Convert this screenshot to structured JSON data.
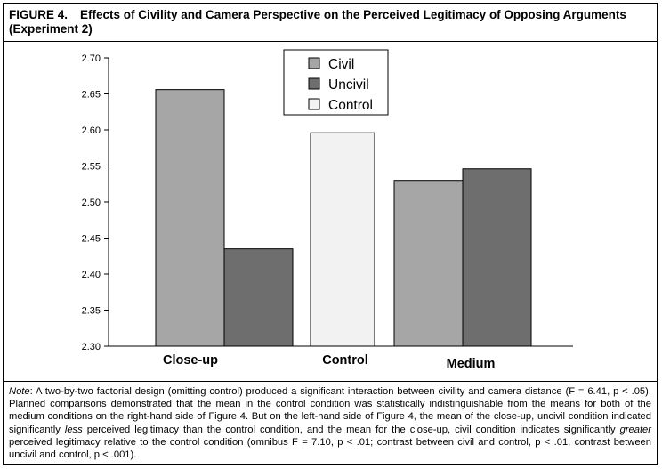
{
  "figure": {
    "number": "FIGURE 4.",
    "title": "Effects of Civility and Camera Perspective on the Perceived Legitimacy of Opposing Arguments (Experiment 2)"
  },
  "note": {
    "label": "Note",
    "segments": [
      ": A two-by-two factorial design (omitting control) produced a significant interaction between civility and camera distance (F = 6.41, p < .05). Planned comparisons demonstrated that the mean in the control condition was statistically indistinguishable from the means for both of the medium conditions on the right-hand side of Figure 4. But on the left-hand side of Figure 4, the mean of the close-up, uncivil condition indicated significantly ",
      "less",
      " perceived legitimacy than the control condition, and the mean for the close-up, civil condition indicates significantly ",
      "greater",
      " perceived legitimacy relative to the control condition (omnibus F = 7.10, p < .01; contrast between civil and control, p < .01, contrast between uncivil and control, p < .001)."
    ]
  },
  "colors": {
    "civil": "#a6a6a6",
    "uncivil": "#6e6e6e",
    "control": "#f2f2f2",
    "border": "#000000"
  },
  "chart_data": {
    "type": "bar",
    "ylim": [
      2.3,
      2.7
    ],
    "yticks": [
      "2.30",
      "2.35",
      "2.40",
      "2.45",
      "2.50",
      "2.55",
      "2.60",
      "2.65",
      "2.70"
    ],
    "grid": false,
    "legend_position": "top-center",
    "groups": [
      {
        "label": "Close-up",
        "bars": [
          {
            "series": "Civil",
            "value": 2.656
          },
          {
            "series": "Uncivil",
            "value": 2.435
          }
        ]
      },
      {
        "label": "Control",
        "bars": [
          {
            "series": "Control",
            "value": 2.596
          }
        ]
      },
      {
        "label": "Medium",
        "bars": [
          {
            "series": "Civil",
            "value": 2.53
          },
          {
            "series": "Uncivil",
            "value": 2.546
          }
        ]
      }
    ],
    "legend": [
      {
        "name": "Civil",
        "color": "#a6a6a6"
      },
      {
        "name": "Uncivil",
        "color": "#6e6e6e"
      },
      {
        "name": "Control",
        "color": "#f2f2f2"
      }
    ]
  }
}
